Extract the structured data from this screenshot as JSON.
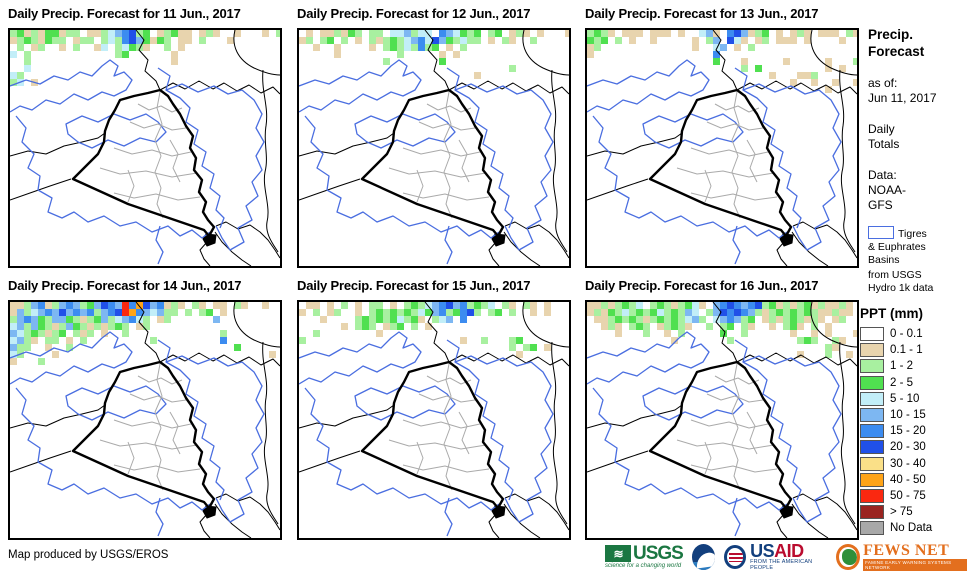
{
  "panels": [
    {
      "title": "Daily Precip. Forecast for 11 Jun., 2017",
      "precip_grid": [
        "gGtgtGGtgg.ttgcbBDgG.tgGtt.tgt..t...t.g",
        "tgGgtGgg.tgg.gcgBDbGtGg.tt.g...t.......",
        ".g.tg..t.g..tc.gcGgt..g.t..............",
        "c.g............gG......t...............",
        "..g....................t...............",
        "..c....................................",
        "cg.....................................",
        "gc.t..................................."
      ]
    },
    {
      "title": "Daily Precip. Forecast for 12 Jun., 2017",
      "precip_grid": [
        ".t.ttgtGg.gg.ccbgcc.BbcGgG.gG.tgt.t...t",
        "tg.gG.g.t.gtgGgcbBcDbGgcgg.t.gt..g.....",
        "..t..t....t.gGgcgBgG.t.g...............",
        ".....t........g.....t.t................",
        "............g.......G..................",
        "..............................g........",
        ".........................t............"
      ]
    },
    {
      "title": "Daily Precip. Forecast for 13 Jun., 2017",
      "precip_grid": [
        "gGgt.ttt.ttt.t..cbt.BDbtgG.t.tgt.ttt.gt",
        "GgG.g.t..t.....t.gb.Dct.tg.ttt.t....t..",
        "tg.............t..cb.t.g...............",
        "t.................B....................",
        "..................G...t.....t.....t...g",
        "......................g.G.........t.t..",
        "..........................t...ttg......",
        ".............................t..t..t..t",
        "..................................t...."
      ]
    },
    {
      "title": "Daily Precip. Forecast for 14 Jun., 2017",
      "precip_grid": [
        "ttgbBtgbBbgGbDBbrBoDbBtgt.gt.tt.gt..t..",
        "tbgcbBbDbBbBgbBDroBbcbgg.g.gG.t........",
        "gbBbGgbbGgtgGbgcbBcg.tg......b.........",
        "cbgbGgtgbGgtgtgGg.tg...................",
        "bcgGgtgG.gtg.t..g.............g........",
        "cbgt.gg.t.g.........g.........B........",
        "bgg..t..g.......................G......",
        "cg....t..............................t.",
        "t...g.................................."
      ]
    },
    {
      "title": "Daily Precip. Forecast for 15 Jun., 2017",
      "precip_grid": [
        ".tt.t.g.t.gg.t.gGgcbBDbBgGgc.gt.gt.t...",
        "t.g.tg..t.gGgGgGgcGbBgGBDg.gG.g..t.t...",
        "...t....gGgGgGcgGt.gcb.B...............",
        "......t.gGg.tgG.g.t....................",
        "..g........t...........................",
        "g......................t..g...gG.......",
        "..............................g.gG.t...",
        "...............................t......."
      ]
    },
    {
      "title": "Daily Precip. Forecast for 16 Jun., 2017",
      "precip_grid": [
        "ttgtgGgc.gGgtgGct.bBDBbBDgGtgtgGtgttgt.",
        "tgtGgcgGgGcgGgbc.gbDBDBbgtgGgGgGgttgtt.",
        ".ttgGgGgtgGgGgcbg.cbBbgG.tgtgGgtgt.tg..",
        "..tgt.gGg.tgGgt..g.gG.gt..t.gGt.g.t....",
        "....t...g..t.g.....G..g......t..t.t...t",
        "............t.......g.........gGg..gt..",
        "..................................gt...",
        "..............................t...g..t."
      ]
    }
  ],
  "sidebar": {
    "title_line1": "Precip.",
    "title_line2": "Forecast",
    "as_of_label": "as of:",
    "as_of_date": "Jun 11, 2017",
    "totals_line1": "Daily",
    "totals_line2": "Totals",
    "data_label": "Data:",
    "data_source_line1": "NOAA-",
    "data_source_line2": "GFS",
    "basin_key_lines": [
      "Tigres",
      "& Euphrates",
      "Basins",
      "from USGS",
      "Hydro 1k data"
    ]
  },
  "legend": {
    "title": "PPT (mm)",
    "items": [
      {
        "label": "0 - 0.1",
        "color": "#ffffff"
      },
      {
        "label": "0.1 - 1",
        "color": "#e8d4ae"
      },
      {
        "label": "1 - 2",
        "color": "#a8f0a0"
      },
      {
        "label": "2 - 5",
        "color": "#50e050"
      },
      {
        "label": "5 - 10",
        "color": "#c2eef8"
      },
      {
        "label": "10 - 15",
        "color": "#7db7f2"
      },
      {
        "label": "15 - 20",
        "color": "#3c8cf0"
      },
      {
        "label": "20 - 30",
        "color": "#2050e8"
      },
      {
        "label": "30 - 40",
        "color": "#fae088"
      },
      {
        "label": "40 - 50",
        "color": "#ffa418"
      },
      {
        "label": "50 - 75",
        "color": "#fa2810"
      },
      {
        "label": "> 75",
        "color": "#9a2420"
      },
      {
        "label": "No Data",
        "color": "#a8a8a8"
      }
    ]
  },
  "precip_palette": {
    "t": "#e8d4ae",
    "g": "#a8f0a0",
    "G": "#50e050",
    "c": "#c2eef8",
    "b": "#7db7f2",
    "B": "#3c8cf0",
    "D": "#2050e8",
    "y": "#fae088",
    "o": "#ffa418",
    "r": "#fa2810",
    "R": "#9a2420"
  },
  "map_colors": {
    "basin_line": "#4a6ee0",
    "country_line": "#000000",
    "iraq_line": "#000000",
    "province_line": "#aaaaaa"
  },
  "footer": {
    "credit": "Map produced by USGS/EROS",
    "logos": {
      "usgs": {
        "text": "USGS",
        "tagline": "science for a changing world"
      },
      "noaa": {
        "name": "NOAA"
      },
      "usaid": {
        "text_us": "US",
        "text_aid": "AID",
        "tagline": "FROM THE AMERICAN PEOPLE"
      },
      "fewsnet": {
        "text": "FEWS NET",
        "tagline": "FAMINE EARLY WARNING SYSTEMS NETWORK"
      }
    }
  }
}
